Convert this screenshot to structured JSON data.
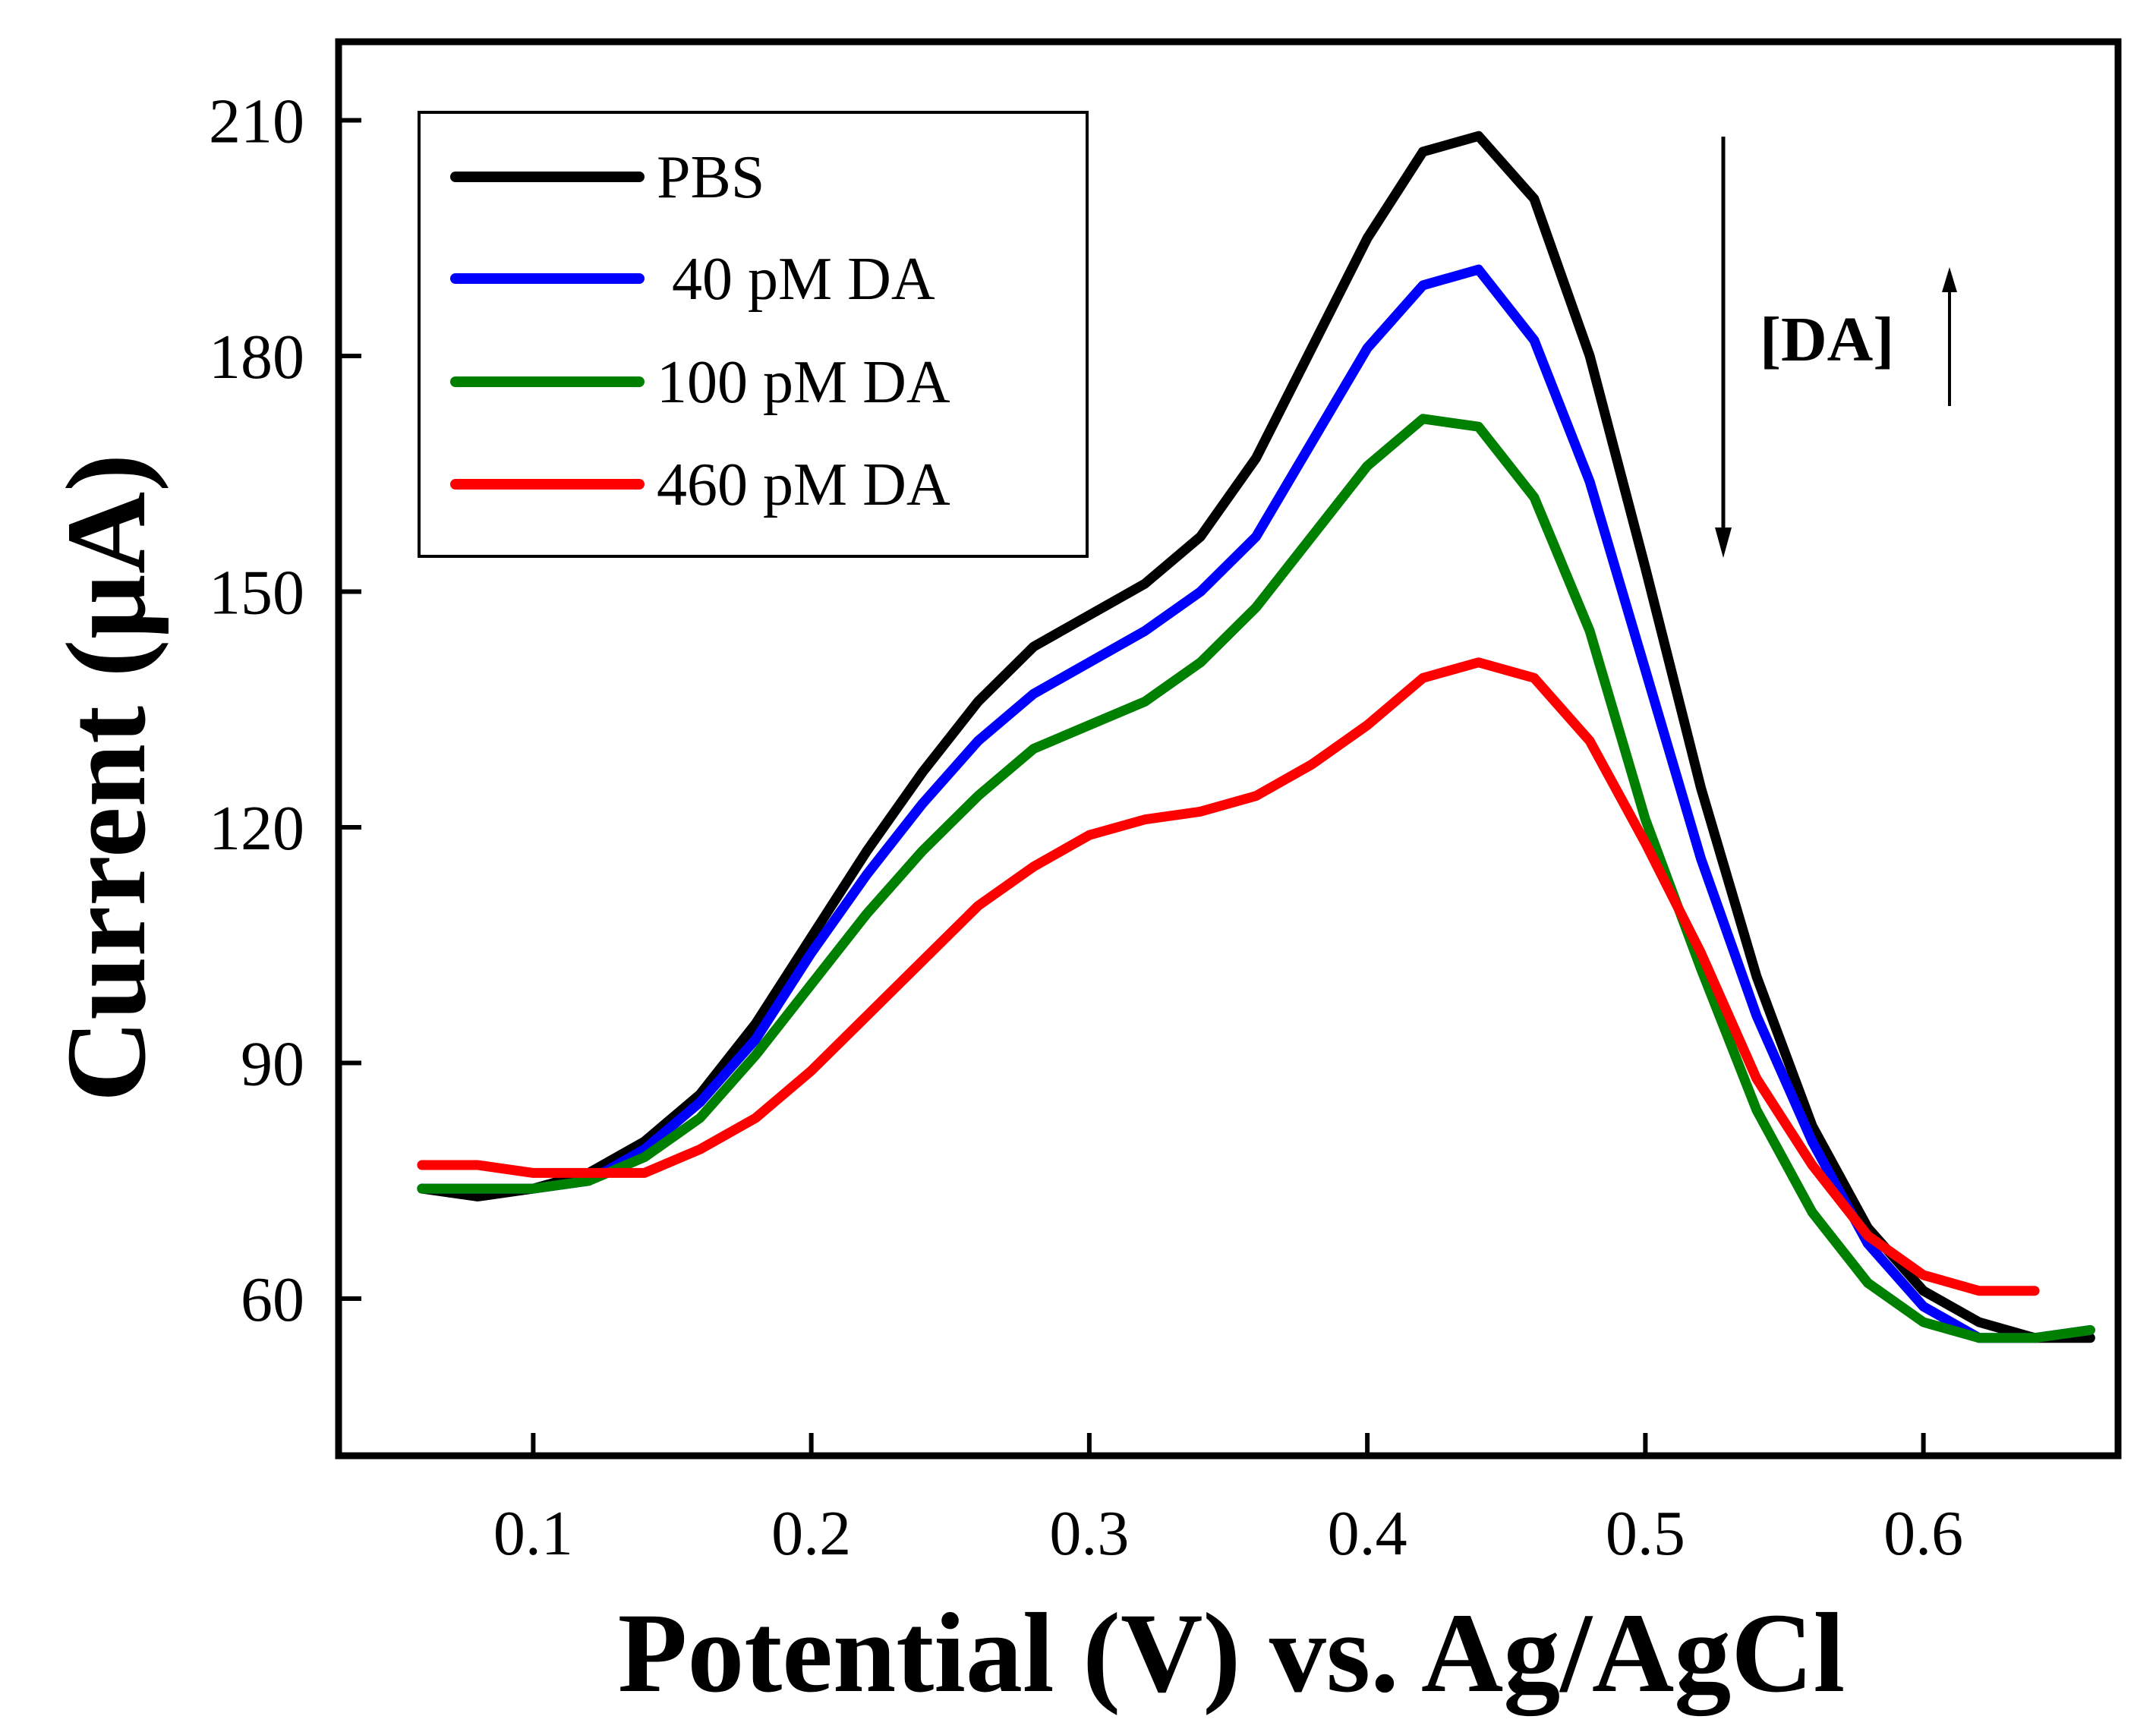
{
  "chart_data": {
    "type": "line",
    "title": "",
    "xlabel": "Potential (V) vs. Ag/AgCl",
    "ylabel": "Current (µA)",
    "xlim": [
      0.03,
      0.67
    ],
    "ylim": [
      40,
      220
    ],
    "xticks": [
      0.1,
      0.2,
      0.3,
      0.4,
      0.5,
      0.6
    ],
    "xtick_labels": [
      "0.1",
      "0.2",
      "0.3",
      "0.4",
      "0.5",
      "0.6"
    ],
    "yticks": [
      60,
      90,
      120,
      150,
      180,
      210
    ],
    "ytick_labels": [
      "60",
      "90",
      "120",
      "150",
      "180",
      "210"
    ],
    "legend_position": "top-left",
    "annotation": "[DA]",
    "series": [
      {
        "name": "PBS",
        "color": "#000000",
        "x": [
          0.06,
          0.08,
          0.1,
          0.12,
          0.14,
          0.16,
          0.18,
          0.2,
          0.22,
          0.24,
          0.26,
          0.28,
          0.3,
          0.32,
          0.34,
          0.36,
          0.38,
          0.4,
          0.42,
          0.44,
          0.46,
          0.48,
          0.5,
          0.52,
          0.54,
          0.56,
          0.58,
          0.6,
          0.62,
          0.64,
          0.66
        ],
        "y": [
          74,
          73,
          74,
          76,
          80,
          86,
          95,
          106,
          117,
          127,
          136,
          143,
          147,
          151,
          157,
          167,
          181,
          195,
          206,
          208,
          200,
          180,
          153,
          125,
          101,
          82,
          69,
          61,
          57,
          55,
          55
        ]
      },
      {
        "name": " 40 pM DA",
        "color": "#0000ff",
        "x": [
          0.06,
          0.08,
          0.1,
          0.12,
          0.14,
          0.16,
          0.18,
          0.2,
          0.22,
          0.24,
          0.26,
          0.28,
          0.3,
          0.32,
          0.34,
          0.36,
          0.38,
          0.4,
          0.42,
          0.44,
          0.46,
          0.48,
          0.5,
          0.52,
          0.54,
          0.56,
          0.58,
          0.6,
          0.62,
          0.64,
          0.66
        ],
        "y": [
          74,
          74,
          74,
          75,
          79,
          85,
          93,
          104,
          114,
          123,
          131,
          137,
          141,
          145,
          150,
          157,
          169,
          181,
          189,
          191,
          182,
          164,
          140,
          116,
          96,
          80,
          67,
          59,
          55,
          55,
          56
        ]
      },
      {
        "name": "100 pM DA",
        "color": "#008000",
        "x": [
          0.06,
          0.08,
          0.1,
          0.12,
          0.14,
          0.16,
          0.18,
          0.2,
          0.22,
          0.24,
          0.26,
          0.28,
          0.3,
          0.32,
          0.34,
          0.36,
          0.38,
          0.4,
          0.42,
          0.44,
          0.46,
          0.48,
          0.5,
          0.52,
          0.54,
          0.56,
          0.58,
          0.6,
          0.62,
          0.64,
          0.66
        ],
        "y": [
          74,
          74,
          74,
          75,
          78,
          83,
          91,
          100,
          109,
          117,
          124,
          130,
          133,
          136,
          141,
          148,
          157,
          166,
          172,
          171,
          162,
          145,
          121,
          102,
          84,
          71,
          62,
          57,
          55,
          55,
          56
        ]
      },
      {
        "name": "460 pM DA",
        "color": "#ff0000",
        "x": [
          0.06,
          0.08,
          0.1,
          0.12,
          0.14,
          0.16,
          0.18,
          0.2,
          0.22,
          0.24,
          0.26,
          0.28,
          0.3,
          0.32,
          0.34,
          0.36,
          0.38,
          0.4,
          0.42,
          0.44,
          0.46,
          0.48,
          0.5,
          0.52,
          0.54,
          0.56,
          0.58,
          0.6,
          0.62,
          0.64
        ],
        "y": [
          77,
          77,
          76,
          76,
          76,
          79,
          83,
          89,
          96,
          103,
          110,
          115,
          119,
          121,
          122,
          124,
          128,
          133,
          139,
          141,
          139,
          131,
          118,
          104,
          88,
          77,
          68,
          63,
          61,
          61
        ]
      }
    ]
  }
}
